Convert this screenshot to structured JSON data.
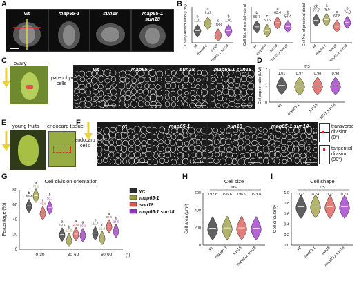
{
  "panels": {
    "A": "A",
    "B": "B",
    "C": "C",
    "D": "D",
    "E": "E",
    "F": "F",
    "G": "G",
    "H": "H",
    "I": "I"
  },
  "genotypes": [
    "wt",
    "map65-1",
    "sun18",
    "map65-1 sun18"
  ],
  "colors": {
    "wt": "#2b2b2b",
    "map65-1": "#9a9a3a",
    "sun18": "#d9534f",
    "double": "#9b30c8"
  },
  "panelA": {
    "labels": [
      "wt",
      "map65-1",
      "sun18",
      "map65-1\nsun18"
    ],
    "lines": [
      "map65-1",
      "sun18"
    ]
  },
  "panelB": {
    "plots": [
      {
        "ylabel": "Ovary aspect ratio (L/W)",
        "means": [
          "1.01",
          "1.32",
          "0.83",
          "1.01"
        ],
        "letters": [
          "b",
          "a",
          "c",
          "b"
        ]
      },
      {
        "ylabel": "Cell No. of medial-lateral",
        "means": [
          "56.7",
          "50.6",
          "63.4",
          "57.4"
        ],
        "letters": [
          "b",
          "c",
          "a",
          "b"
        ]
      },
      {
        "ylabel": "Cell No. of proximal-distal",
        "means": [
          "77.7",
          "78.6",
          "67.8",
          "74.3"
        ],
        "letters": [
          "ab",
          "a",
          "c",
          "b"
        ]
      }
    ],
    "xlabels": [
      "wt",
      "map65-1",
      "sun18",
      "map65-1\nsun18"
    ]
  },
  "panelC": {
    "ovary_label": "ovary",
    "tissue_label": "parenchyma\ncells",
    "images": [
      "wt",
      "map65-1",
      "sun18",
      "map65-1 sun18"
    ]
  },
  "panelD": {
    "ylabel": "Cell aspect ratio (L/W)",
    "sig": "ns",
    "means": [
      "1.01",
      "0.97",
      "0.98",
      "0.98"
    ]
  },
  "panelE": {
    "fruit_label": "young fruits",
    "endocarp_label": "endocarp tissue",
    "side": "endocarp\ncells"
  },
  "panelF": {
    "images": [
      "wt",
      "map65-1",
      "sun18",
      "map65-1 sun18"
    ],
    "transverse": "transverse\ndivision\n(0°)",
    "tangential": "tangential\ndivision\n(90°)"
  },
  "chart_data": [
    {
      "type": "violin",
      "title": "Cell division orientation",
      "ylabel": "Percentage (%)",
      "xlabel": "",
      "categories": [
        "0-30",
        "30-60",
        "60-90"
      ],
      "x_unit": "(°)",
      "yticks": [
        "0",
        "20",
        "40",
        "60",
        "80"
      ],
      "ylim": [
        0,
        80
      ],
      "series": [
        {
          "name": "wt",
          "values": [
            58.4,
            19.9,
            21.7
          ],
          "letters": [
            "b",
            "a",
            "b"
          ]
        },
        {
          "name": "map65-1",
          "values": [
            72.2,
            12.5,
            15.3
          ],
          "letters": [
            "a",
            "b",
            "c"
          ]
        },
        {
          "name": "sun18",
          "values": [
            48.8,
            20.5,
            30.9
          ],
          "letters": [
            "c",
            "a",
            "a"
          ]
        },
        {
          "name": "map65-1 sun18",
          "values": [
            56.1,
            19.1,
            24.8
          ],
          "letters": [
            "b",
            "a",
            "b"
          ]
        }
      ]
    },
    {
      "type": "violin",
      "title": "Cell size",
      "ylabel": "Cell area (μm²)",
      "categories": [
        "wt",
        "map65-1",
        "sun18",
        "map65-1 sun18"
      ],
      "values": [
        192.6,
        196.6,
        196.9,
        193.8
      ],
      "sig": "ns",
      "yticks": [
        "0",
        "200",
        "400",
        "600"
      ],
      "ylim": [
        0,
        600
      ]
    },
    {
      "type": "violin",
      "title": "Cell shape",
      "ylabel": "Cell circularity",
      "categories": [
        "wt",
        "map65-1",
        "sun18",
        "map65-1 sun18"
      ],
      "values": [
        0.73,
        0.74,
        0.73,
        0.73
      ],
      "sig": "ns",
      "yticks": [
        "0.0",
        "0.2",
        "0.4",
        "0.6",
        "0.8",
        "1.0"
      ],
      "ylim": [
        0,
        1
      ]
    }
  ]
}
